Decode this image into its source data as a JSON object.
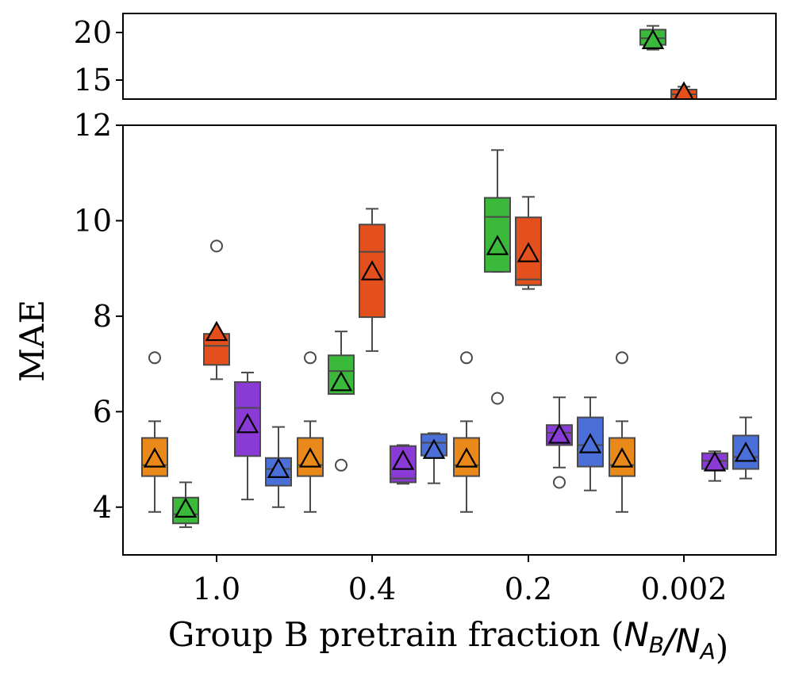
{
  "chart_data": {
    "type": "box",
    "xlabel": "Group B pretrain fraction (",
    "xlabel_math": "N_B/N_A",
    "xlabel_close": ")",
    "ylabel": "MAE",
    "categories": [
      "1.0",
      "0.4",
      "0.2",
      "0.002"
    ],
    "broken_axis": true,
    "upper_panel": {
      "ylim": [
        13,
        22
      ],
      "yticks": [
        "15",
        "20"
      ]
    },
    "lower_panel": {
      "ylim": [
        3,
        12
      ],
      "yticks": [
        "4",
        "6",
        "8",
        "10",
        "12"
      ]
    },
    "mean_marker": "triangle",
    "series": [
      {
        "color": "#e8891a",
        "boxes": [
          {
            "q1": 4.65,
            "median": 4.88,
            "q3": 5.45,
            "whislo": 3.9,
            "whishi": 5.8,
            "mean": 5.0,
            "fliers": [
              7.13
            ]
          },
          {
            "q1": 4.65,
            "median": 4.88,
            "q3": 5.45,
            "whislo": 3.9,
            "whishi": 5.8,
            "mean": 5.0,
            "fliers": [
              7.13
            ]
          },
          {
            "q1": 4.65,
            "median": 4.88,
            "q3": 5.45,
            "whislo": 3.9,
            "whishi": 5.8,
            "mean": 5.0,
            "fliers": [
              7.13
            ]
          },
          {
            "q1": 4.65,
            "median": 4.88,
            "q3": 5.45,
            "whislo": 3.9,
            "whishi": 5.8,
            "mean": 5.0,
            "fliers": [
              7.13
            ]
          }
        ]
      },
      {
        "color": "#3bb93b",
        "boxes": [
          {
            "q1": 3.66,
            "median": 3.85,
            "q3": 4.2,
            "whislo": 3.58,
            "whishi": 4.52,
            "mean": 3.95,
            "fliers": []
          },
          {
            "q1": 6.37,
            "median": 6.85,
            "q3": 7.18,
            "whislo": 6.37,
            "whishi": 7.68,
            "mean": 6.6,
            "fliers": [
              4.88
            ]
          },
          {
            "q1": 8.93,
            "median": 10.08,
            "q3": 10.48,
            "whislo": 8.93,
            "whishi": 11.48,
            "mean": 9.45,
            "fliers": [
              6.28
            ]
          },
          {
            "q1": 18.7,
            "median": 19.4,
            "q3": 20.3,
            "whislo": 18.2,
            "whishi": 20.7,
            "mean": 19.1,
            "fliers": []
          }
        ]
      },
      {
        "color": "#e3501e",
        "boxes": [
          {
            "q1": 6.98,
            "median": 7.38,
            "q3": 7.63,
            "whislo": 6.68,
            "whishi": 7.63,
            "mean": 7.65,
            "fliers": [
              9.47
            ]
          },
          {
            "q1": 7.98,
            "median": 9.35,
            "q3": 9.92,
            "whislo": 7.27,
            "whishi": 10.25,
            "mean": 8.92,
            "fliers": []
          },
          {
            "q1": 8.65,
            "median": 8.77,
            "q3": 10.07,
            "whislo": 8.57,
            "whishi": 10.5,
            "mean": 9.3,
            "fliers": []
          },
          {
            "q1": 12.4,
            "median": 13.5,
            "q3": 14.0,
            "whislo": 12.0,
            "whishi": 14.3,
            "mean": 13.6,
            "fliers": []
          }
        ]
      },
      {
        "color": "#8a3bd6",
        "boxes": [
          {
            "q1": 5.07,
            "median": 6.08,
            "q3": 6.62,
            "whislo": 4.16,
            "whishi": 6.82,
            "mean": 5.72,
            "fliers": []
          },
          {
            "q1": 4.52,
            "median": 4.6,
            "q3": 5.28,
            "whislo": 4.49,
            "whishi": 5.3,
            "mean": 4.95,
            "fliers": []
          },
          {
            "q1": 5.3,
            "median": 5.56,
            "q3": 5.72,
            "whislo": 4.83,
            "whishi": 6.3,
            "mean": 5.5,
            "fliers": [
              4.52
            ]
          },
          {
            "q1": 4.8,
            "median": 4.97,
            "q3": 5.13,
            "whislo": 4.55,
            "whishi": 5.17,
            "mean": 4.92,
            "fliers": []
          }
        ]
      },
      {
        "color": "#4a6fd8",
        "boxes": [
          {
            "q1": 4.45,
            "median": 4.8,
            "q3": 5.03,
            "whislo": 4.0,
            "whishi": 5.68,
            "mean": 4.78,
            "fliers": []
          },
          {
            "q1": 5.08,
            "median": 5.35,
            "q3": 5.53,
            "whislo": 4.5,
            "whishi": 5.55,
            "mean": 5.18,
            "fliers": []
          },
          {
            "q1": 4.85,
            "median": 5.3,
            "q3": 5.88,
            "whislo": 4.35,
            "whishi": 6.3,
            "mean": 5.3,
            "fliers": []
          },
          {
            "q1": 4.8,
            "median": 5.05,
            "q3": 5.5,
            "whislo": 4.6,
            "whishi": 5.88,
            "mean": 5.12,
            "fliers": []
          }
        ]
      }
    ]
  }
}
